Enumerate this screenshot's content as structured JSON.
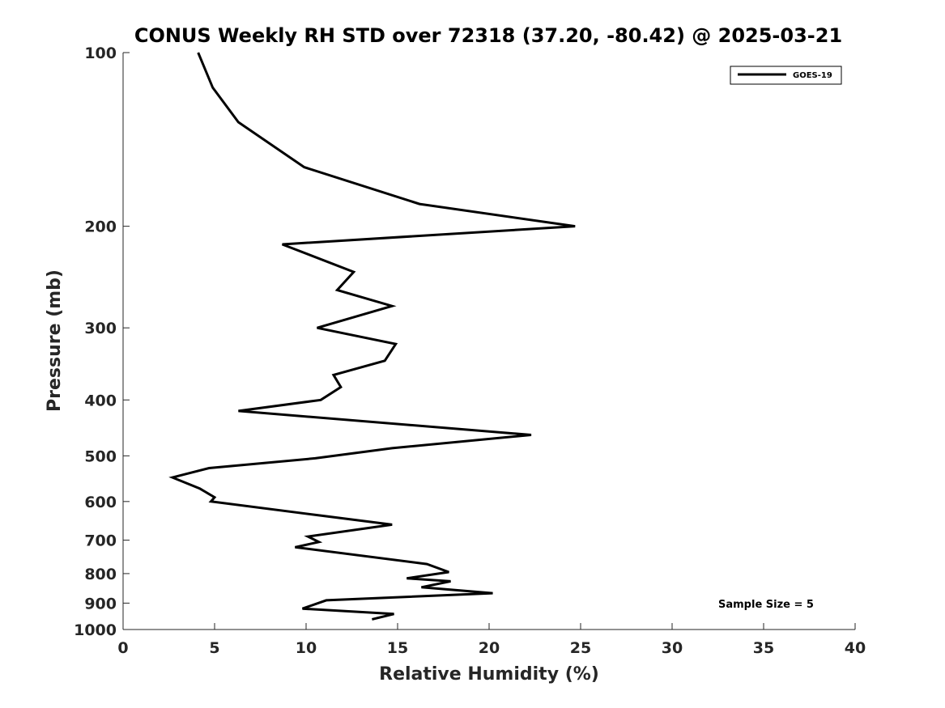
{
  "chart_data": {
    "type": "line",
    "title": "CONUS Weekly RH STD over 72318 (37.20, -80.42) @ 2025-03-21",
    "xlabel": "Relative Humidity (%)",
    "ylabel": "Pressure (mb)",
    "xlim": [
      0,
      40
    ],
    "ylim": [
      100,
      1000
    ],
    "yscale": "log",
    "y_reversed": true,
    "x_ticks": [
      "0",
      "5",
      "10",
      "15",
      "20",
      "25",
      "30",
      "35",
      "40"
    ],
    "y_ticks": [
      "100",
      "200",
      "300",
      "400",
      "500",
      "600",
      "700",
      "800",
      "900",
      "1000"
    ],
    "grid": false,
    "legend_position": "top-right",
    "series": [
      {
        "name": "GOES-19",
        "color": "#000000",
        "x": [
          4.1,
          4.9,
          6.3,
          9.9,
          16.2,
          24.7,
          8.7,
          12.6,
          11.7,
          14.7,
          10.6,
          14.9,
          14.3,
          11.5,
          11.9,
          10.8,
          6.3,
          22.3,
          14.7,
          10.5,
          4.7,
          2.7,
          4.2,
          5.0,
          4.8,
          14.7,
          10.1,
          10.7,
          9.4,
          16.6,
          17.8,
          15.5,
          17.9,
          16.3,
          20.2,
          11.1,
          9.8,
          14.8,
          13.6
        ],
        "y": [
          100,
          115,
          132,
          158,
          183,
          200,
          215,
          240,
          258,
          275,
          300,
          320,
          342,
          362,
          380,
          400,
          418,
          460,
          485,
          505,
          525,
          545,
          570,
          590,
          600,
          658,
          690,
          705,
          720,
          770,
          795,
          815,
          825,
          845,
          865,
          890,
          920,
          940,
          960
        ]
      }
    ],
    "annotations": [
      "Sample Size = 5"
    ]
  }
}
